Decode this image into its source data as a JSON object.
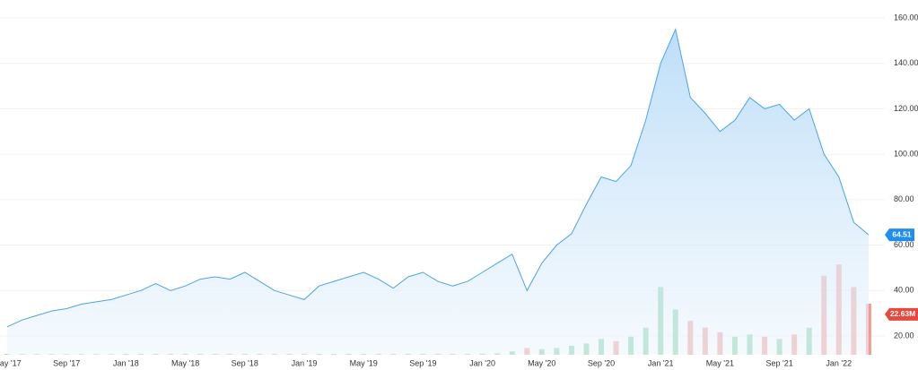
{
  "chart_data": {
    "type": "stock",
    "categories": [
      "May '17",
      null,
      null,
      null,
      "Sep '17",
      null,
      null,
      null,
      "Jan '18",
      null,
      null,
      null,
      "May '18",
      null,
      null,
      null,
      "Sep '18",
      null,
      null,
      null,
      "Jan '19",
      null,
      null,
      null,
      "May '19",
      null,
      null,
      null,
      "Sep '19",
      null,
      null,
      null,
      "Jan '20",
      null,
      null,
      null,
      "May '20",
      null,
      null,
      null,
      "Sep '20",
      null,
      null,
      null,
      "Jan '21",
      null,
      null,
      null,
      "May '21",
      null,
      null,
      null,
      "Sep '21",
      null,
      null,
      null,
      "Jan '22",
      null,
      null
    ],
    "series": [
      {
        "color": "#4aa3ea",
        "values": [
          24,
          27,
          29,
          31,
          32,
          34,
          35,
          36,
          38,
          40,
          43,
          40,
          42,
          45,
          46,
          45,
          48,
          44,
          40,
          38,
          36,
          42,
          44,
          46,
          48,
          45,
          41,
          46,
          48,
          44,
          42,
          44,
          48,
          52,
          56,
          40,
          52,
          60,
          65,
          78,
          90,
          88,
          95,
          115,
          140,
          155,
          125,
          118,
          110,
          115,
          125,
          120,
          122,
          115,
          120,
          100,
          90,
          70,
          64.51
        ]
      },
      {
        "axis": "y2",
        "values": [
          0.3,
          0.3,
          0.3,
          0.3,
          0.3,
          0.3,
          0.3,
          0.3,
          0.4,
          0.4,
          0.4,
          0.4,
          0.4,
          0.4,
          0.4,
          0.4,
          0.4,
          0.4,
          0.4,
          0.4,
          0.4,
          0.4,
          0.4,
          0.4,
          0.4,
          0.4,
          0.4,
          0.4,
          0.4,
          0.4,
          0.4,
          0.4,
          0.5,
          0.6,
          1.5,
          3,
          2.5,
          3,
          4,
          5,
          7,
          6,
          8,
          12,
          30,
          20,
          15,
          12,
          10,
          8,
          9,
          8,
          7,
          9,
          12,
          35,
          40,
          30,
          22.63
        ],
        "value_labels": [
          null,
          null,
          null,
          null,
          null,
          null,
          null,
          null,
          null,
          null,
          null,
          null,
          null,
          null,
          null,
          null,
          null,
          null,
          null,
          null,
          null,
          null,
          null,
          null,
          null,
          null,
          null,
          null,
          null,
          null,
          null,
          null,
          null,
          null,
          null,
          null,
          null,
          null,
          null,
          null,
          null,
          null,
          null,
          null,
          null,
          null,
          null,
          null,
          null,
          null,
          null,
          null,
          null,
          null,
          null,
          null,
          null,
          null,
          "22.63M"
        ],
        "up_color": "#7fd0a4",
        "down_color": "#ef9a93",
        "label_color": "#e8493c"
      }
    ],
    "ylim": [
      11.7,
      167.9
    ],
    "yticks": [
      {
        "value": 20,
        "label": "20.00"
      },
      {
        "value": 40,
        "label": "40.00"
      },
      {
        "value": 60,
        "label": "60.00"
      },
      {
        "value": 80,
        "label": "80.00"
      },
      {
        "value": 100,
        "label": "100.00"
      },
      {
        "value": 120,
        "label": "120.00"
      },
      {
        "value": 140,
        "label": "140.00"
      },
      {
        "value": 160,
        "label": "160.00"
      }
    ],
    "y2lim": [
      0,
      157
    ],
    "grid": true
  }
}
